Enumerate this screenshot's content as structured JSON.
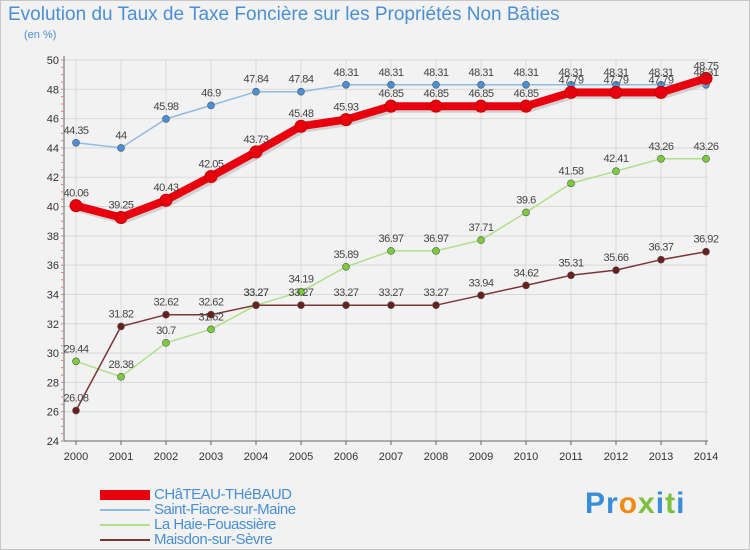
{
  "header": {
    "title": "Evolution du Taux de Taxe Foncière sur les Propriétés Non Bâties",
    "unit": "(en %)"
  },
  "brand": {
    "name": "Proxiti"
  },
  "colors": {
    "title": "#4a8fd6",
    "grid": "#d9d9d9",
    "axis": "#666666",
    "background": "#f2f2f2",
    "tick_marks": "#e08080"
  },
  "chart_data": {
    "type": "line",
    "title": "Evolution du Taux de Taxe Foncière sur les Propriétés Non Bâties",
    "ylabel": "(en %)",
    "xlabel": "",
    "x": [
      2000,
      2001,
      2002,
      2003,
      2004,
      2005,
      2006,
      2007,
      2008,
      2009,
      2010,
      2011,
      2012,
      2013,
      2014
    ],
    "ylim": [
      24,
      50
    ],
    "yticks": [
      24,
      26,
      28,
      30,
      32,
      34,
      36,
      38,
      40,
      42,
      44,
      46,
      48,
      50
    ],
    "grid": true,
    "legend_position": "bottom-left",
    "series": [
      {
        "name": "CHâTEAU-THéBAUD",
        "color": "#e8000f",
        "line_color": "#e8000f",
        "emphasis": "thick",
        "values": [
          40.06,
          39.25,
          40.43,
          42.05,
          43.73,
          45.48,
          45.93,
          46.85,
          46.85,
          46.85,
          46.85,
          47.79,
          47.79,
          47.79,
          48.75
        ],
        "labels": [
          "40.06",
          "39.25",
          "40.43",
          "42.05",
          "43.73",
          "45.48",
          "45.93",
          "46.85",
          "46.85",
          "46.85",
          "46.85",
          "47.79",
          "47.79",
          "47.79",
          "48.75"
        ]
      },
      {
        "name": "Saint-Fiacre-sur-Maine",
        "color": "#4a90d9",
        "line_color": "#8fbbe6",
        "emphasis": "thin",
        "values": [
          44.35,
          44,
          45.98,
          46.9,
          47.84,
          47.84,
          48.31,
          48.31,
          48.31,
          48.31,
          48.31,
          48.31,
          48.31,
          48.31,
          48.31
        ],
        "labels": [
          "44.35",
          "44",
          "45.98",
          "46.9",
          "47.84",
          "47.84",
          "48.31",
          "48.31",
          "48.31",
          "48.31",
          "48.31",
          "48.31",
          "48.31",
          "48.31",
          "48.31"
        ]
      },
      {
        "name": "La Haie-Fouassière",
        "color": "#7ccd3a",
        "line_color": "#aee08a",
        "emphasis": "thin",
        "values": [
          29.44,
          28.38,
          30.7,
          31.62,
          33.27,
          34.19,
          35.89,
          36.97,
          36.97,
          37.71,
          39.6,
          41.58,
          42.41,
          43.26,
          43.26
        ],
        "labels": [
          "29.44",
          "28.38",
          "30.7",
          "31.62",
          "33.27",
          "34.19",
          "35.89",
          "36.97",
          "36.97",
          "37.71",
          "39.6",
          "41.58",
          "42.41",
          "43.26",
          "43.26"
        ]
      },
      {
        "name": "Maisdon-sur-Sèvre",
        "color": "#6a1f1f",
        "line_color": "#7a3535",
        "emphasis": "thin",
        "values": [
          26.08,
          31.82,
          32.62,
          32.62,
          33.27,
          33.27,
          33.27,
          33.27,
          33.27,
          33.94,
          34.62,
          35.31,
          35.66,
          36.37,
          36.92
        ],
        "labels": [
          "26.08",
          "31.82",
          "32.62",
          "32.62",
          "33.27",
          "33.27",
          "33.27",
          "33.27",
          "33.27",
          "33.94",
          "34.62",
          "35.31",
          "35.66",
          "36.37",
          "36.92"
        ]
      }
    ]
  }
}
